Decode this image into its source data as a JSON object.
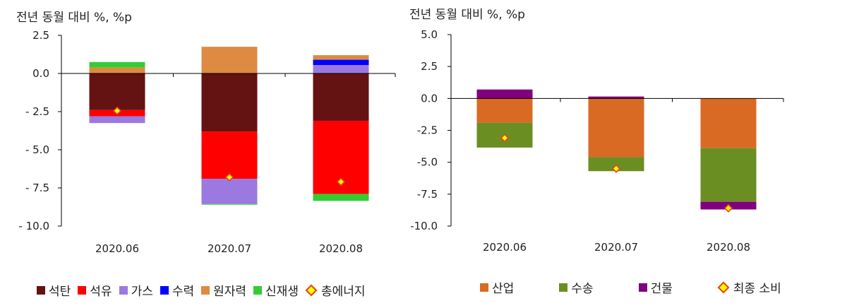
{
  "chart_data": [
    {
      "type": "bar",
      "stacked": true,
      "title": "",
      "unit_label": "전년 동월 대비 %, %p",
      "categories": [
        "2020.06",
        "2020.07",
        "2020.08"
      ],
      "ylim": [
        -10.0,
        2.5
      ],
      "yticks": [
        2.5,
        0.0,
        -2.5,
        -5.0,
        -7.5,
        -10.0
      ],
      "ytick_labels": [
        "2.5",
        "0.0",
        "- 2.5",
        "- 5.0",
        "- 7.5",
        "- 10.0"
      ],
      "series": [
        {
          "name": "석탄",
          "color": "#651213",
          "values": [
            -2.4,
            -3.8,
            -3.1
          ]
        },
        {
          "name": "석유",
          "color": "#ff0000",
          "values": [
            -0.4,
            -3.1,
            -4.8
          ]
        },
        {
          "name": "가스",
          "color": "#9b79e0",
          "values": [
            -0.45,
            -1.65,
            0.55
          ]
        },
        {
          "name": "수력",
          "color": "#0000ff",
          "values": [
            0.0,
            0.0,
            0.35
          ]
        },
        {
          "name": "원자력",
          "color": "#de8a42",
          "values": [
            0.4,
            1.75,
            0.3
          ]
        },
        {
          "name": "신재생",
          "color": "#33cc33",
          "values": [
            0.35,
            -0.05,
            -0.45
          ]
        }
      ],
      "line_series": {
        "name": "총에너지",
        "marker_color": "#ffff00",
        "edge_color": "#e8401c",
        "values": [
          -2.45,
          -6.8,
          -7.1
        ]
      }
    },
    {
      "type": "bar",
      "stacked": true,
      "title": "",
      "unit_label": "전년 동월 대비 %, %p",
      "categories": [
        "2020.06",
        "2020.07",
        "2020.08"
      ],
      "ylim": [
        -10.0,
        5.0
      ],
      "yticks": [
        5.0,
        2.5,
        0.0,
        -2.5,
        -5.0,
        -7.5,
        -10.0
      ],
      "ytick_labels": [
        "5.0",
        "2.5",
        "0.0",
        "-2.5",
        "-5.0",
        "-7.5",
        "-10.0"
      ],
      "series": [
        {
          "name": "산업",
          "color": "#d96a24",
          "values": [
            -1.9,
            -4.6,
            -3.9
          ]
        },
        {
          "name": "수송",
          "color": "#6b8e23",
          "values": [
            -1.95,
            -1.1,
            -4.2
          ]
        },
        {
          "name": "건물",
          "color": "#800080",
          "values": [
            0.7,
            0.15,
            -0.6
          ]
        }
      ],
      "line_series": {
        "name": "최종 소비",
        "marker_color": "#ffff00",
        "edge_color": "#e8401c",
        "values": [
          -3.1,
          -5.5,
          -8.6
        ]
      }
    }
  ]
}
